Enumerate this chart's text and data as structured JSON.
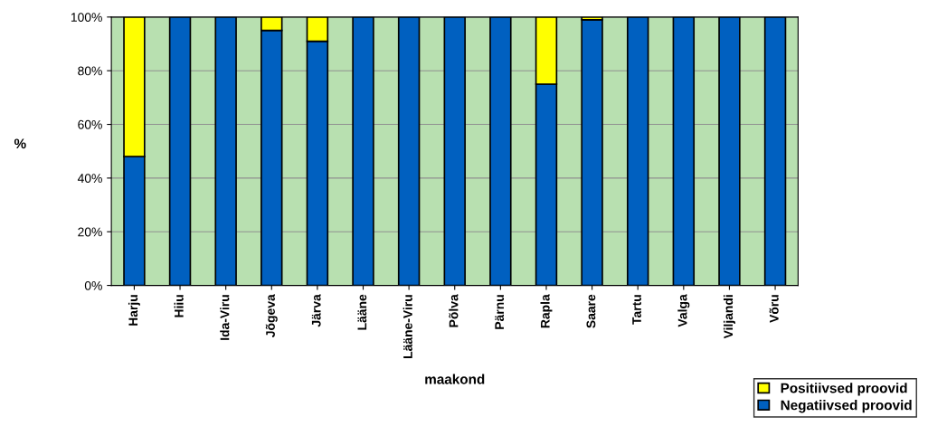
{
  "chart_data": {
    "type": "bar",
    "stacked": true,
    "xlabel": "maakond",
    "ylabel": "%",
    "categories": [
      "Harju",
      "Hiiu",
      "Ida-Viru",
      "Jõgeva",
      "Järva",
      "Lääne",
      "Lääne-Viru",
      "Põlva",
      "Pärnu",
      "Rapla",
      "Saare",
      "Tartu",
      "Valga",
      "Viljandi",
      "Võru"
    ],
    "series": [
      {
        "name": "Negatiivsed proovid",
        "color": "#0060c0",
        "values": [
          48,
          100,
          100,
          95,
          91,
          100,
          100,
          100,
          100,
          75,
          99,
          100,
          100,
          100,
          100
        ]
      },
      {
        "name": "Positiivsed proovid",
        "color": "#ffff00",
        "values": [
          52,
          null,
          null,
          5,
          9,
          null,
          null,
          null,
          null,
          25,
          1,
          null,
          null,
          null,
          null
        ]
      }
    ],
    "ylim": [
      0,
      100
    ],
    "yticks": [
      {
        "value": 0,
        "label": "0%"
      },
      {
        "value": 20,
        "label": "20%"
      },
      {
        "value": 40,
        "label": "40%"
      },
      {
        "value": 60,
        "label": "60%"
      },
      {
        "value": 80,
        "label": "80%"
      },
      {
        "value": 100,
        "label": "100%"
      }
    ],
    "grid": "y",
    "legend": "bottom right"
  }
}
